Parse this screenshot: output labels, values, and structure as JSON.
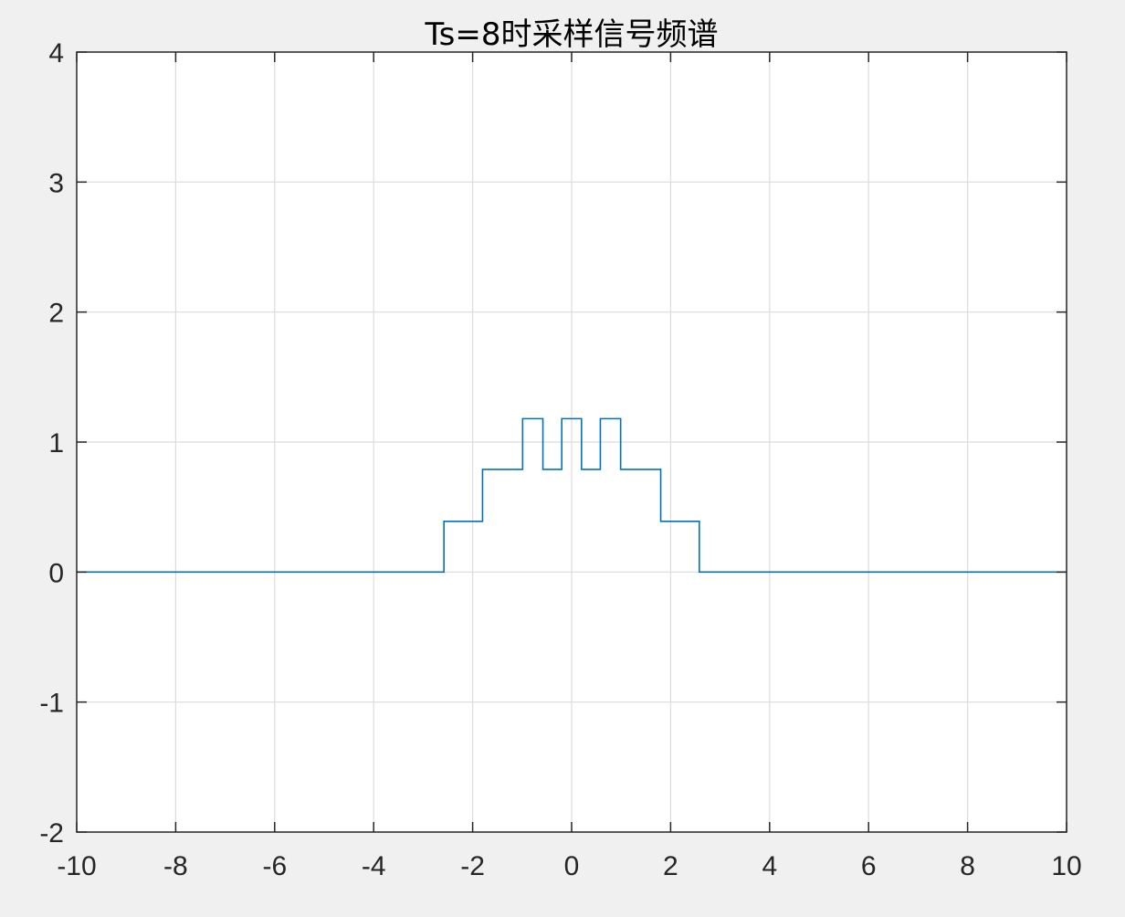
{
  "chart_data": {
    "type": "line",
    "title": "Ts=8时采样信号频谱",
    "xlabel": "",
    "ylabel": "",
    "xlim": [
      -10,
      10
    ],
    "ylim": [
      -2,
      4
    ],
    "xticks": [
      -10,
      -8,
      -6,
      -4,
      -2,
      0,
      2,
      4,
      6,
      8,
      10
    ],
    "yticks": [
      -2,
      -1,
      0,
      1,
      2,
      3,
      4
    ],
    "xtick_labels": [
      "-10",
      "-8",
      "-6",
      "-4",
      "-2",
      "0",
      "2",
      "4",
      "6",
      "8",
      "10"
    ],
    "ytick_labels": [
      "-2",
      "-1",
      "0",
      "1",
      "2",
      "3",
      "4"
    ],
    "grid": true,
    "series": [
      {
        "color": "#0072bd",
        "x": [
          -10,
          -2.58,
          -2.58,
          -1.8,
          -1.8,
          -0.99,
          -0.99,
          -0.58,
          -0.58,
          -0.2,
          -0.2,
          0.2,
          0.2,
          0.58,
          0.58,
          0.99,
          0.99,
          1.8,
          1.8,
          2.58,
          2.58,
          10
        ],
        "y": [
          0,
          0,
          0.39,
          0.39,
          0.79,
          0.79,
          1.18,
          1.18,
          0.79,
          0.79,
          1.18,
          1.18,
          0.79,
          0.79,
          1.18,
          1.18,
          0.79,
          0.79,
          0.39,
          0.39,
          0,
          0
        ]
      }
    ]
  }
}
